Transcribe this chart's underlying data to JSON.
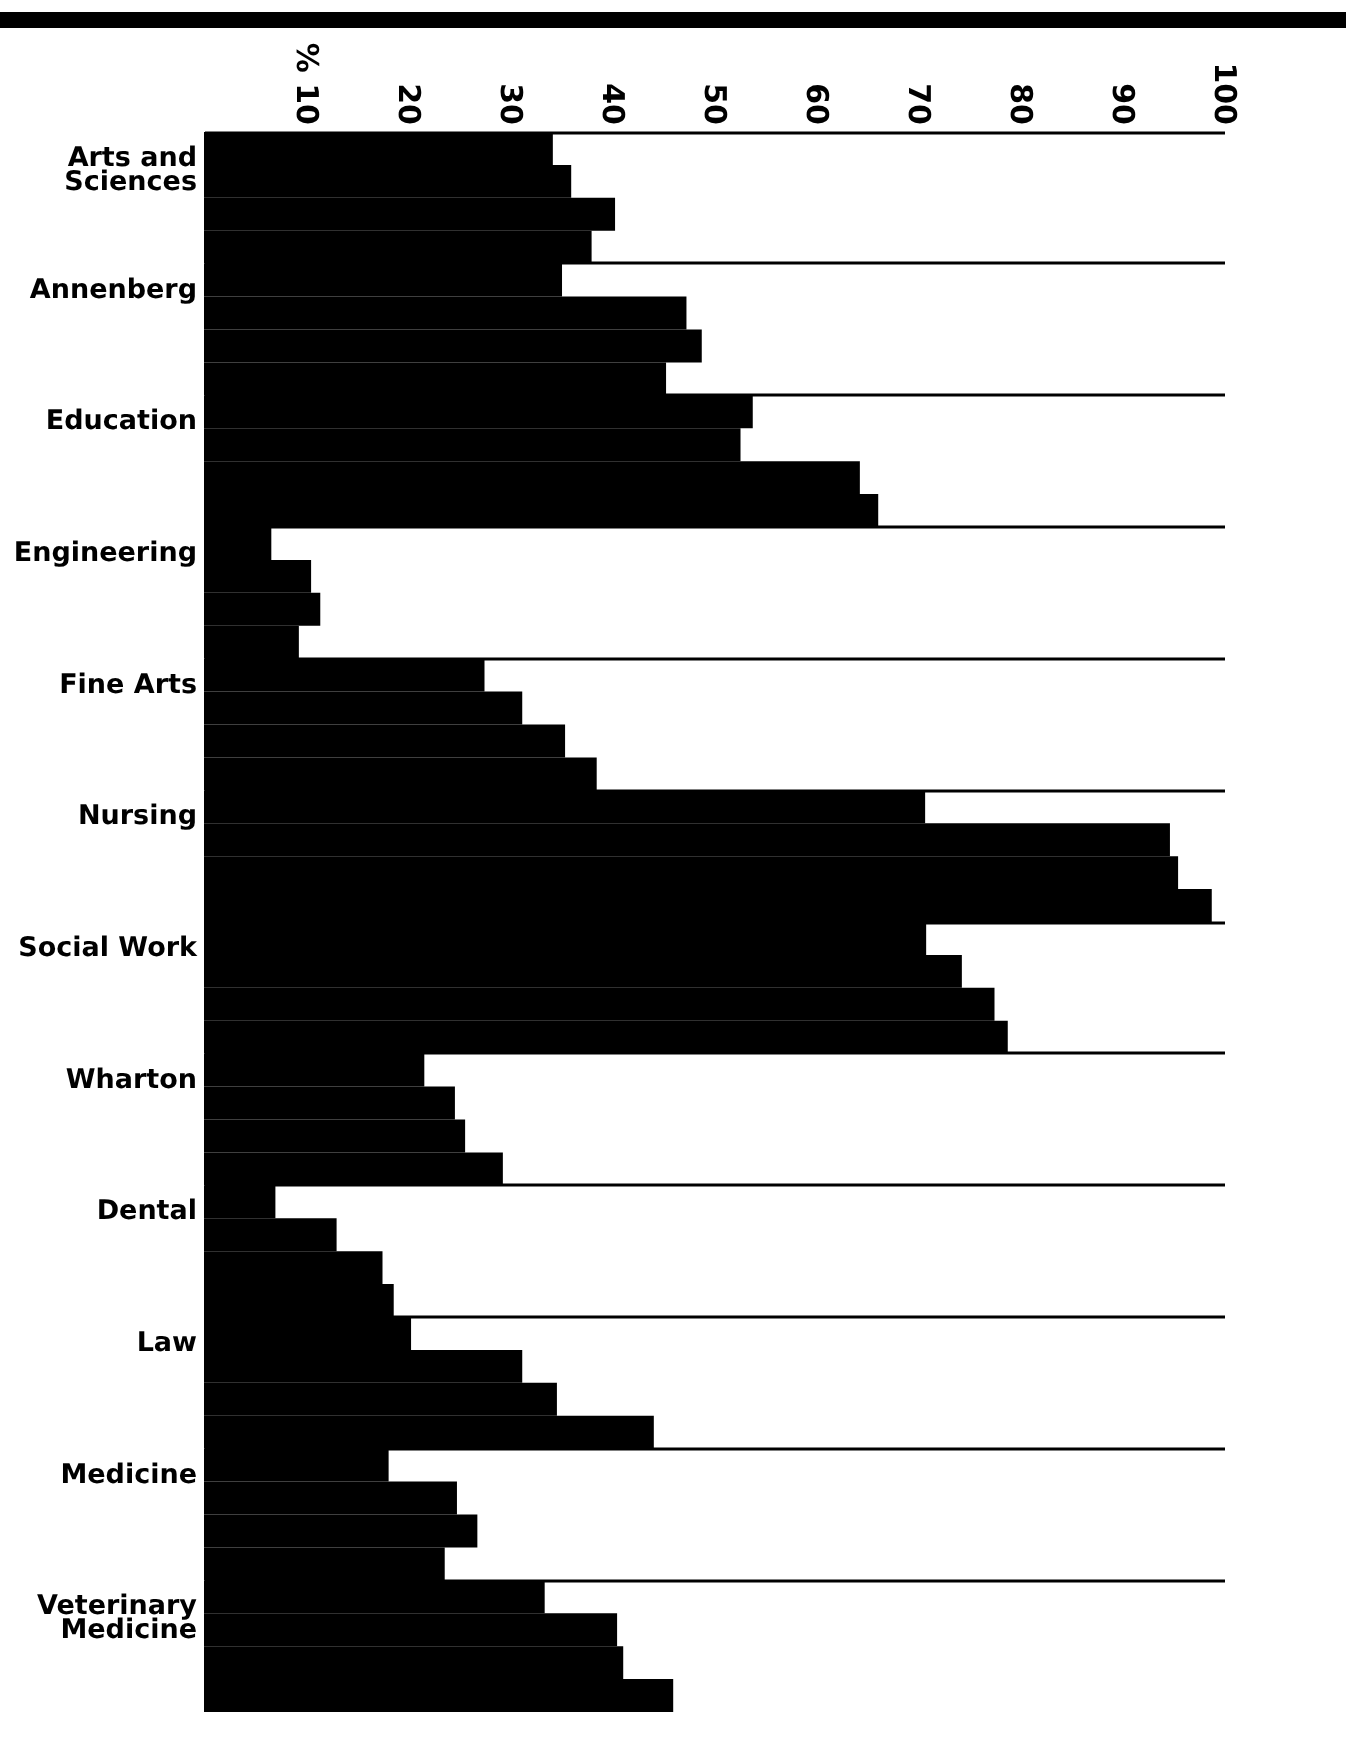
{
  "chart_data": {
    "type": "bar",
    "orientation": "horizontal",
    "categories": [
      "Arts and Sciences",
      "Annenberg",
      "Education",
      "Engineering",
      "Fine Arts",
      "Nursing",
      "Social Work",
      "Wharton",
      "Dental",
      "Law",
      "Medicine",
      "Veterinary Medicine"
    ],
    "series": [
      {
        "color": "#000000",
        "values": [
          34.2,
          35.1,
          53.8,
          6.6,
          27.5,
          70.7,
          70.8,
          21.6,
          7.0,
          20.3,
          18.1,
          33.4
        ]
      },
      {
        "color": "#000000",
        "values": [
          36.0,
          47.3,
          52.6,
          10.5,
          31.2,
          94.7,
          74.3,
          24.6,
          13.0,
          31.2,
          24.8,
          40.5
        ]
      },
      {
        "color": "#000000",
        "values": [
          40.3,
          48.8,
          64.3,
          11.4,
          35.4,
          95.5,
          77.5,
          25.6,
          17.5,
          34.6,
          26.8,
          41.1
        ]
      },
      {
        "color": "#000000",
        "values": [
          38.0,
          45.3,
          66.1,
          9.3,
          38.5,
          98.8,
          78.8,
          29.3,
          18.6,
          44.1,
          23.6,
          46.0
        ]
      }
    ],
    "xlim": [
      0,
      100
    ],
    "xticks": [
      {
        "value": 10,
        "label": "% 10"
      },
      20,
      30,
      40,
      50,
      60,
      70,
      80,
      90,
      100
    ],
    "grid": "y"
  }
}
